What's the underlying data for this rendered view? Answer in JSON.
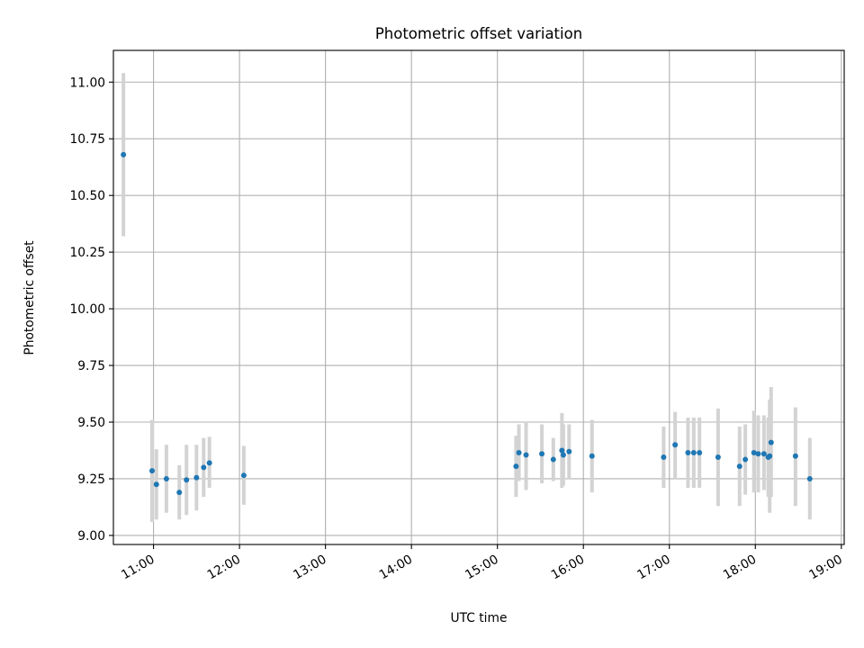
{
  "chart_data": {
    "type": "scatter",
    "title": "Photometric offset variation",
    "xlabel": "UTC time",
    "ylabel": "Photometric offset",
    "xlim": [
      "10:32",
      "19:02"
    ],
    "ylim": [
      8.96,
      11.14
    ],
    "x_ticks": [
      "11:00",
      "12:00",
      "13:00",
      "14:00",
      "15:00",
      "16:00",
      "17:00",
      "18:00",
      "19:00"
    ],
    "y_ticks": [
      "9.00",
      "9.25",
      "9.50",
      "9.75",
      "10.00",
      "10.25",
      "10.50",
      "10.75",
      "11.00"
    ],
    "grid": true,
    "points": [
      {
        "t": "10:39",
        "y": 10.68,
        "lo": 10.32,
        "hi": 11.04
      },
      {
        "t": "10:59",
        "y": 9.285,
        "lo": 9.06,
        "hi": 9.51
      },
      {
        "t": "11:02",
        "y": 9.225,
        "lo": 9.07,
        "hi": 9.38
      },
      {
        "t": "11:09",
        "y": 9.25,
        "lo": 9.1,
        "hi": 9.4
      },
      {
        "t": "11:18",
        "y": 9.19,
        "lo": 9.07,
        "hi": 9.31
      },
      {
        "t": "11:23",
        "y": 9.245,
        "lo": 9.09,
        "hi": 9.4
      },
      {
        "t": "11:30",
        "y": 9.255,
        "lo": 9.11,
        "hi": 9.4
      },
      {
        "t": "11:35",
        "y": 9.3,
        "lo": 9.17,
        "hi": 9.43
      },
      {
        "t": "11:39",
        "y": 9.32,
        "lo": 9.21,
        "hi": 9.435
      },
      {
        "t": "12:03",
        "y": 9.265,
        "lo": 9.135,
        "hi": 9.395
      },
      {
        "t": "15:13",
        "y": 9.305,
        "lo": 9.17,
        "hi": 9.44
      },
      {
        "t": "15:15",
        "y": 9.365,
        "lo": 9.24,
        "hi": 9.49
      },
      {
        "t": "15:20",
        "y": 9.355,
        "lo": 9.2,
        "hi": 9.5
      },
      {
        "t": "15:31",
        "y": 9.36,
        "lo": 9.23,
        "hi": 9.49
      },
      {
        "t": "15:39",
        "y": 9.335,
        "lo": 9.24,
        "hi": 9.43
      },
      {
        "t": "15:45",
        "y": 9.375,
        "lo": 9.21,
        "hi": 9.54
      },
      {
        "t": "15:46",
        "y": 9.355,
        "lo": 9.22,
        "hi": 9.49
      },
      {
        "t": "15:50",
        "y": 9.37,
        "lo": 9.25,
        "hi": 9.49
      },
      {
        "t": "16:06",
        "y": 9.35,
        "lo": 9.19,
        "hi": 9.51
      },
      {
        "t": "16:56",
        "y": 9.345,
        "lo": 9.21,
        "hi": 9.48
      },
      {
        "t": "17:04",
        "y": 9.4,
        "lo": 9.25,
        "hi": 9.545
      },
      {
        "t": "17:13",
        "y": 9.365,
        "lo": 9.21,
        "hi": 9.52
      },
      {
        "t": "17:17",
        "y": 9.365,
        "lo": 9.21,
        "hi": 9.52
      },
      {
        "t": "17:21",
        "y": 9.365,
        "lo": 9.21,
        "hi": 9.52
      },
      {
        "t": "17:34",
        "y": 9.345,
        "lo": 9.13,
        "hi": 9.56
      },
      {
        "t": "17:49",
        "y": 9.305,
        "lo": 9.13,
        "hi": 9.48
      },
      {
        "t": "17:53",
        "y": 9.335,
        "lo": 9.18,
        "hi": 9.49
      },
      {
        "t": "17:59",
        "y": 9.365,
        "lo": 9.19,
        "hi": 9.55
      },
      {
        "t": "18:02",
        "y": 9.36,
        "lo": 9.19,
        "hi": 9.53
      },
      {
        "t": "18:06",
        "y": 9.36,
        "lo": 9.2,
        "hi": 9.53
      },
      {
        "t": "18:09",
        "y": 9.345,
        "lo": 9.17,
        "hi": 9.52
      },
      {
        "t": "18:10",
        "y": 9.35,
        "lo": 9.1,
        "hi": 9.6
      },
      {
        "t": "18:11",
        "y": 9.41,
        "lo": 9.17,
        "hi": 9.655
      },
      {
        "t": "18:28",
        "y": 9.35,
        "lo": 9.13,
        "hi": 9.565
      },
      {
        "t": "18:38",
        "y": 9.25,
        "lo": 9.07,
        "hi": 9.43
      }
    ],
    "marker_color": "#1f77b4",
    "errorbar_color": "#d3d3d3"
  }
}
